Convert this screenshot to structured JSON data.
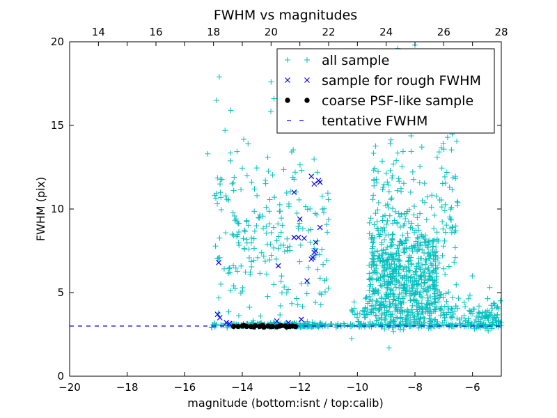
{
  "chart_data": {
    "type": "scatter",
    "title": "FWHM vs magnitudes",
    "xlabel": "magnitude (bottom:isnt / top:calib)",
    "ylabel": "FWHM (pix)",
    "xlim": [
      -20,
      -5
    ],
    "ylim": [
      0,
      20
    ],
    "top_xlim": [
      13,
      28
    ],
    "x_ticks": [
      "−20",
      "−18",
      "−16",
      "−14",
      "−12",
      "−10",
      "−8",
      "−6"
    ],
    "x_tick_values": [
      -20,
      -18,
      -16,
      -14,
      -12,
      -10,
      -8,
      -6
    ],
    "y_ticks": [
      "0",
      "5",
      "10",
      "15",
      "20"
    ],
    "y_tick_values": [
      0,
      5,
      10,
      15,
      20
    ],
    "top_ticks": [
      "14",
      "16",
      "18",
      "20",
      "22",
      "24",
      "26",
      "28"
    ],
    "top_tick_values": [
      14,
      16,
      18,
      20,
      22,
      24,
      26,
      28
    ],
    "grid": false,
    "legend_position": "top-right",
    "legend": [
      {
        "label": "all sample",
        "marker": "+",
        "color": "#00bfbf"
      },
      {
        "label": "sample for rough FWHM",
        "marker": "x",
        "color": "#0000ff"
      },
      {
        "label": "coarse PSF-like sample",
        "marker": "o",
        "color": "#000000"
      },
      {
        "label": "tentative FWHM",
        "marker": "--",
        "color": "#0000ff"
      }
    ],
    "tentative_fwhm": 3.0,
    "series": [
      {
        "name": "all sample",
        "marker": "+",
        "color": "#00bfbf",
        "clusters": [
          {
            "mag_range": [
              -14.4,
              -11.2
            ],
            "fwhm_center": 3.05,
            "fwhm_spread": 0.08,
            "count": 160
          },
          {
            "mag_range": [
              -15.1,
              -5.0
            ],
            "fwhm_center": 3.05,
            "fwhm_spread": 0.1,
            "count": 240
          },
          {
            "mag_range": [
              -10.2,
              -5.0
            ],
            "fwhm_center": 3.7,
            "fwhm_spread": 0.7,
            "count": 260
          },
          {
            "mag_range": [
              -9.6,
              -7.2
            ],
            "fwhm_center": 6.0,
            "fwhm_spread": 2.0,
            "count": 520
          },
          {
            "mag_range": [
              -9.5,
              -6.5
            ],
            "fwhm_center": 9.5,
            "fwhm_spread": 4.0,
            "count": 240
          },
          {
            "mag_range": [
              -15.0,
              -11.0
            ],
            "fwhm_center": 8.0,
            "fwhm_spread": 4.0,
            "count": 230
          }
        ],
        "points": [
          [
            -14.8,
            17.9
          ],
          [
            -14.9,
            16.5
          ],
          [
            -14.4,
            15.9
          ],
          [
            -13.0,
            17.6
          ],
          [
            -12.9,
            16.6
          ],
          [
            -15.2,
            13.3
          ],
          [
            -14.6,
            14.7
          ],
          [
            -13.8,
            13.9
          ],
          [
            -8.0,
            19.8
          ],
          [
            -8.6,
            19.6
          ],
          [
            -10.2,
            2.25
          ],
          [
            -8.9,
            1.7
          ],
          [
            -6.0,
            6.0
          ],
          [
            -5.4,
            5.3
          ],
          [
            -6.6,
            7.1
          ]
        ]
      },
      {
        "name": "sample for rough FWHM",
        "marker": "x",
        "color": "#0000ff",
        "points": [
          [
            -14.82,
            6.8
          ],
          [
            -14.86,
            3.7
          ],
          [
            -14.78,
            3.5
          ],
          [
            -14.55,
            3.2
          ],
          [
            -14.45,
            3.15
          ],
          [
            -12.75,
            6.6
          ],
          [
            -12.2,
            11.0
          ],
          [
            -12.2,
            8.3
          ],
          [
            -12.05,
            8.3
          ],
          [
            -12.0,
            9.4
          ],
          [
            -11.85,
            8.25
          ],
          [
            -11.6,
            11.95
          ],
          [
            -11.5,
            11.5
          ],
          [
            -11.35,
            11.7
          ],
          [
            -11.3,
            11.6
          ],
          [
            -11.3,
            8.9
          ],
          [
            -11.45,
            8.0
          ],
          [
            -11.5,
            7.4
          ],
          [
            -11.45,
            7.5
          ],
          [
            -11.6,
            7.0
          ],
          [
            -11.55,
            7.1
          ],
          [
            -11.75,
            5.7
          ],
          [
            -12.8,
            3.3
          ],
          [
            -12.4,
            3.2
          ],
          [
            -11.95,
            3.4
          ]
        ]
      },
      {
        "name": "coarse PSF-like sample",
        "marker": "o",
        "color": "#000000",
        "points": [
          [
            -14.3,
            2.98
          ],
          [
            -14.15,
            2.98
          ],
          [
            -14.0,
            3.0
          ],
          [
            -13.85,
            2.98
          ],
          [
            -13.7,
            2.97
          ],
          [
            -13.55,
            3.02
          ],
          [
            -13.4,
            2.98
          ],
          [
            -13.25,
            2.93
          ],
          [
            -13.1,
            3.0
          ],
          [
            -12.95,
            2.98
          ],
          [
            -12.8,
            2.95
          ],
          [
            -12.65,
            3.02
          ],
          [
            -12.5,
            3.0
          ],
          [
            -12.35,
            2.98
          ],
          [
            -12.25,
            3.0
          ],
          [
            -12.15,
            2.97
          ],
          [
            -13.95,
            3.04
          ],
          [
            -13.6,
            2.95
          ],
          [
            -13.3,
            3.05
          ],
          [
            -13.0,
            2.96
          ],
          [
            -12.7,
            3.0
          ],
          [
            -12.45,
            2.95
          ]
        ]
      }
    ]
  }
}
